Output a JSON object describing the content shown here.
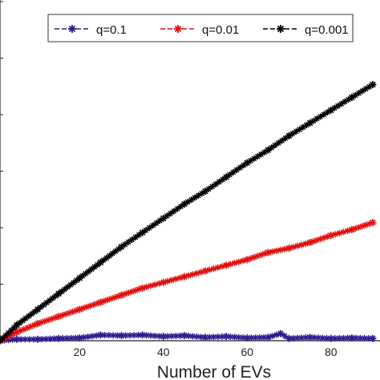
{
  "chart_data": {
    "type": "line",
    "title": "",
    "xlabel": "Number of EVs",
    "ylabel": "",
    "xlim": [
      1,
      90
    ],
    "ylim": [
      0,
      1
    ],
    "x_ticks": [
      20,
      40,
      60,
      80
    ],
    "grid": false,
    "legend_position": "top",
    "marker": "star",
    "line_style": "dashed",
    "series": [
      {
        "name": "q=0.1",
        "color": "#2e1a8f",
        "x": [
          1,
          5,
          10,
          15,
          20,
          25,
          30,
          35,
          40,
          45,
          50,
          55,
          60,
          65,
          68,
          70,
          75,
          80,
          85,
          90
        ],
        "y": [
          0.0,
          0.005,
          0.005,
          0.008,
          0.01,
          0.02,
          0.018,
          0.02,
          0.015,
          0.018,
          0.012,
          0.015,
          0.01,
          0.012,
          0.025,
          0.008,
          0.012,
          0.008,
          0.01,
          0.008
        ]
      },
      {
        "name": "q=0.01",
        "color": "#e01010",
        "x": [
          1,
          5,
          10,
          15,
          20,
          25,
          30,
          35,
          40,
          45,
          50,
          55,
          60,
          65,
          70,
          75,
          80,
          85,
          90
        ],
        "y": [
          0.0,
          0.03,
          0.06,
          0.085,
          0.11,
          0.135,
          0.16,
          0.185,
          0.205,
          0.225,
          0.245,
          0.265,
          0.285,
          0.31,
          0.325,
          0.345,
          0.37,
          0.39,
          0.415
        ]
      },
      {
        "name": "q=0.001",
        "color": "#000000",
        "x": [
          1,
          5,
          10,
          15,
          20,
          25,
          30,
          35,
          40,
          45,
          50,
          55,
          60,
          65,
          70,
          75,
          80,
          85,
          90
        ],
        "y": [
          0.0,
          0.055,
          0.11,
          0.165,
          0.22,
          0.275,
          0.33,
          0.38,
          0.43,
          0.48,
          0.525,
          0.575,
          0.625,
          0.67,
          0.72,
          0.765,
          0.81,
          0.855,
          0.9
        ]
      }
    ]
  }
}
